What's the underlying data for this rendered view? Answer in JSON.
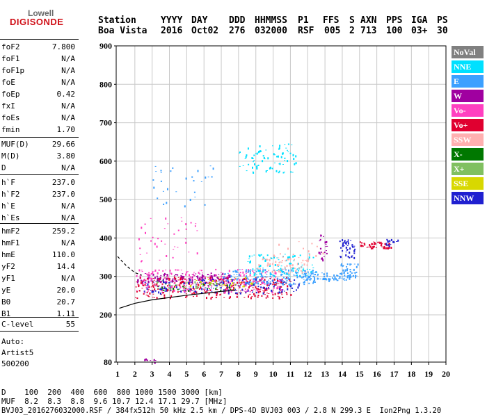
{
  "logo": {
    "line1": "Lowell",
    "line2": "DIGISONDE"
  },
  "header": {
    "labels": [
      "Station",
      "YYYY",
      "DAY",
      "DDD",
      "HHMMSS",
      "P1",
      "FFS",
      "S",
      "AXN",
      "PPS",
      "IGA",
      "PS"
    ],
    "values": [
      "Boa Vista",
      "2016",
      "Oct02",
      "276",
      "032000",
      "RSF",
      "005",
      "2",
      "713",
      "100",
      "03+",
      "30"
    ]
  },
  "params": {
    "group1": [
      {
        "label": "foF2",
        "value": "7.800"
      },
      {
        "label": "foF1",
        "value": "N/A"
      },
      {
        "label": "foF1p",
        "value": "N/A"
      },
      {
        "label": "foE",
        "value": "N/A"
      },
      {
        "label": "foEp",
        "value": "0.42"
      },
      {
        "label": "fxI",
        "value": "N/A"
      },
      {
        "label": "foEs",
        "value": "N/A"
      },
      {
        "label": "fmin",
        "value": "1.70"
      }
    ],
    "group2": [
      {
        "label": "MUF(D)",
        "value": "29.66"
      },
      {
        "label": "M(D)",
        "value": "3.80"
      },
      {
        "label": "D",
        "value": "N/A"
      }
    ],
    "group3": [
      {
        "label": "h`F",
        "value": "237.0"
      },
      {
        "label": "h`F2",
        "value": "237.0"
      },
      {
        "label": "h`E",
        "value": "N/A"
      },
      {
        "label": "h`Es",
        "value": "N/A"
      }
    ],
    "group4": [
      {
        "label": "hmF2",
        "value": "259.2"
      },
      {
        "label": "hmF1",
        "value": "N/A"
      },
      {
        "label": "hmE",
        "value": "110.0"
      },
      {
        "label": "yF2",
        "value": "14.4"
      },
      {
        "label": "yF1",
        "value": "N/A"
      },
      {
        "label": "yE",
        "value": "20.0"
      },
      {
        "label": "B0",
        "value": "20.7"
      },
      {
        "label": "B1",
        "value": "1.11"
      }
    ],
    "group5": [
      {
        "label": "C-level",
        "value": "55"
      }
    ],
    "autoscale": [
      "Auto:",
      "Artist5",
      "500200"
    ]
  },
  "legend": [
    {
      "label": "NoVal",
      "color": "#808080"
    },
    {
      "label": "NNE",
      "color": "#00e0ff"
    },
    {
      "label": "E",
      "color": "#3ca0ff"
    },
    {
      "label": "W",
      "color": "#a000a0"
    },
    {
      "label": "Vo-",
      "color": "#ff40c0"
    },
    {
      "label": "Vo+",
      "color": "#e00030"
    },
    {
      "label": "SSW",
      "color": "#ffb0b0"
    },
    {
      "label": "X-",
      "color": "#007800"
    },
    {
      "label": "X+",
      "color": "#80c060"
    },
    {
      "label": "SSE",
      "color": "#d8d800"
    },
    {
      "label": "NNW",
      "color": "#2020d0"
    }
  ],
  "footer": {
    "distance_row": "D    100  200  400  600  800 1000 1500 3000 [km]",
    "muf_row": "MUF  8.2  8.3  8.8  9.6 10.7 12.4 17.1 29.7 [MHz]",
    "info_row": "BVJ03_2016276032000.RSF / 384fx512h 50 kHz 2.5 km / DPS-4D BVJ03 003 / 2.8 N 299.3 E  Ion2Png 1.3.20"
  },
  "chart_data": {
    "type": "scatter",
    "xlim": [
      1,
      20
    ],
    "ylim": [
      80,
      910
    ],
    "x_ticks": [
      1,
      2,
      3,
      4,
      5,
      6,
      7,
      8,
      9,
      10,
      11,
      12,
      13,
      14,
      15,
      16,
      17,
      18,
      19,
      20
    ],
    "y_ticks": [
      80,
      200,
      300,
      400,
      500,
      600,
      700,
      800,
      900
    ],
    "grid": true,
    "legend_position": "right",
    "clusters": [
      {
        "color": "#a000a0",
        "x0": 2.1,
        "x1": 7.5,
        "y0": 285,
        "y1": 310,
        "n": 150
      },
      {
        "color": "#e00030",
        "x0": 2.0,
        "x1": 11.0,
        "y0": 245,
        "y1": 300,
        "n": 320
      },
      {
        "color": "#2020d0",
        "x0": 2.5,
        "x1": 11.5,
        "y0": 258,
        "y1": 295,
        "n": 200
      },
      {
        "color": "#ff40c0",
        "x0": 2.0,
        "x1": 10.5,
        "y0": 260,
        "y1": 320,
        "n": 180
      },
      {
        "color": "#3ca0ff",
        "x0": 7.0,
        "x1": 12.5,
        "y0": 280,
        "y1": 320,
        "n": 140
      },
      {
        "color": "#00e0ff",
        "x0": 8.5,
        "x1": 12.5,
        "y0": 300,
        "y1": 360,
        "n": 100
      },
      {
        "color": "#3ca0ff",
        "x0": 11.5,
        "x1": 14.5,
        "y0": 290,
        "y1": 310,
        "n": 80
      },
      {
        "color": "#ffb0b0",
        "x0": 9.0,
        "x1": 12.0,
        "y0": 310,
        "y1": 350,
        "n": 60
      },
      {
        "color": "#d8d800",
        "x0": 5.0,
        "x1": 9.0,
        "y0": 275,
        "y1": 300,
        "n": 30
      },
      {
        "color": "#80c060",
        "x0": 3.0,
        "x1": 8.0,
        "y0": 268,
        "y1": 290,
        "n": 30
      },
      {
        "color": "#007800",
        "x0": 3.5,
        "x1": 7.5,
        "y0": 265,
        "y1": 282,
        "n": 20
      },
      {
        "color": "#00e0ff",
        "x0": 8.0,
        "x1": 11.3,
        "y0": 570,
        "y1": 650,
        "n": 80
      },
      {
        "color": "#3ca0ff",
        "x0": 3.0,
        "x1": 6.5,
        "y0": 480,
        "y1": 590,
        "n": 30
      },
      {
        "color": "#ff40c0",
        "x0": 2.2,
        "x1": 6.0,
        "y0": 340,
        "y1": 460,
        "n": 40
      },
      {
        "color": "#a000a0",
        "x0": 12.6,
        "x1": 13.1,
        "y0": 340,
        "y1": 410,
        "n": 25
      },
      {
        "color": "#2020d0",
        "x0": 13.8,
        "x1": 14.7,
        "y0": 350,
        "y1": 400,
        "n": 45
      },
      {
        "color": "#e00030",
        "x0": 15.0,
        "x1": 16.8,
        "y0": 375,
        "y1": 392,
        "n": 50
      },
      {
        "color": "#2020d0",
        "x0": 16.5,
        "x1": 17.2,
        "y0": 380,
        "y1": 398,
        "n": 15
      },
      {
        "color": "#3ca0ff",
        "x0": 13.8,
        "x1": 14.9,
        "y0": 300,
        "y1": 335,
        "n": 35
      },
      {
        "color": "#a000a0",
        "x0": 2.5,
        "x1": 3.2,
        "y0": 80,
        "y1": 90,
        "n": 8
      },
      {
        "color": "#ffb0b0",
        "x0": 10.0,
        "x1": 13.0,
        "y0": 340,
        "y1": 400,
        "n": 20
      }
    ],
    "curves": [
      {
        "style": "solid",
        "points": [
          [
            1.1,
            217
          ],
          [
            2.0,
            230
          ],
          [
            3.0,
            239
          ],
          [
            4.0,
            245
          ],
          [
            5.0,
            251
          ],
          [
            6.0,
            256
          ],
          [
            7.0,
            261
          ],
          [
            7.8,
            264
          ]
        ]
      },
      {
        "style": "dashed",
        "points": [
          [
            1.0,
            352
          ],
          [
            1.5,
            328
          ],
          [
            2.0,
            310
          ],
          [
            2.4,
            303
          ]
        ]
      }
    ]
  }
}
